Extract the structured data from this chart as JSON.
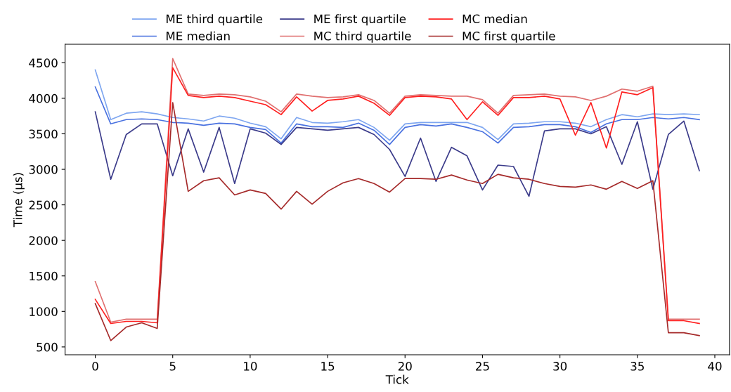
{
  "chart_data": {
    "type": "line",
    "xlabel": "Tick",
    "ylabel": "Time (µs)",
    "x": [
      0,
      1,
      2,
      3,
      4,
      5,
      6,
      7,
      8,
      9,
      10,
      11,
      12,
      13,
      14,
      15,
      16,
      17,
      18,
      19,
      20,
      21,
      22,
      23,
      24,
      25,
      26,
      27,
      28,
      29,
      30,
      31,
      32,
      33,
      34,
      35,
      36,
      37,
      38,
      39
    ],
    "xlim": [
      -1.95,
      40.95
    ],
    "xticks": [
      0,
      5,
      10,
      15,
      20,
      25,
      30,
      35,
      40
    ],
    "ylim": [
      390,
      4760
    ],
    "yticks": [
      500,
      1000,
      1500,
      2000,
      2500,
      3000,
      3500,
      4000,
      4500
    ],
    "grid": false,
    "legend": "top",
    "marker": "none",
    "line_style": "solid",
    "series": [
      {
        "name": "ME third quartile",
        "color": "#7ea6f0",
        "values": [
          4400,
          3700,
          3790,
          3810,
          3780,
          3730,
          3710,
          3680,
          3750,
          3720,
          3650,
          3600,
          3430,
          3730,
          3660,
          3650,
          3670,
          3700,
          3590,
          3410,
          3640,
          3660,
          3660,
          3660,
          3660,
          3590,
          3420,
          3640,
          3650,
          3670,
          3670,
          3650,
          3600,
          3700,
          3770,
          3740,
          3780,
          3770,
          3780,
          3770
        ]
      },
      {
        "name": "ME median",
        "color": "#4a72e0",
        "values": [
          4160,
          3640,
          3700,
          3710,
          3700,
          3660,
          3650,
          3620,
          3650,
          3640,
          3590,
          3560,
          3370,
          3640,
          3600,
          3600,
          3590,
          3650,
          3550,
          3350,
          3590,
          3630,
          3610,
          3640,
          3590,
          3530,
          3370,
          3590,
          3600,
          3630,
          3630,
          3600,
          3520,
          3640,
          3700,
          3700,
          3730,
          3710,
          3730,
          3700
        ]
      },
      {
        "name": "ME first quartile",
        "color": "#3b3b8a",
        "values": [
          3810,
          2860,
          3490,
          3640,
          3640,
          2910,
          3570,
          2960,
          3590,
          2800,
          3570,
          3510,
          3350,
          3590,
          3570,
          3550,
          3570,
          3590,
          3490,
          3280,
          2900,
          3440,
          2830,
          3310,
          3190,
          2710,
          3060,
          3040,
          2620,
          3540,
          3570,
          3570,
          3500,
          3600,
          3070,
          3670,
          2720,
          3490,
          3680,
          2980
        ]
      },
      {
        "name": "MC third quartile",
        "color": "#e07070",
        "values": [
          1420,
          850,
          890,
          890,
          890,
          4560,
          4060,
          4040,
          4060,
          4050,
          4020,
          3960,
          3810,
          4060,
          4030,
          4010,
          4020,
          4050,
          3970,
          3790,
          4030,
          4050,
          4040,
          4030,
          4030,
          3980,
          3790,
          4040,
          4050,
          4060,
          4030,
          4020,
          3970,
          4030,
          4130,
          4100,
          4170,
          890,
          890,
          890
        ]
      },
      {
        "name": "MC median",
        "color": "#ff2020",
        "values": [
          1170,
          830,
          860,
          860,
          840,
          4430,
          4040,
          4010,
          4030,
          4010,
          3960,
          3910,
          3770,
          4020,
          3820,
          3970,
          3990,
          4030,
          3930,
          3760,
          4010,
          4030,
          4020,
          3990,
          3700,
          3950,
          3760,
          4010,
          4010,
          4030,
          3990,
          3480,
          3940,
          3300,
          4090,
          4050,
          4150,
          870,
          870,
          830
        ]
      },
      {
        "name": "MC first quartile",
        "color": "#a52a2a",
        "values": [
          1110,
          590,
          780,
          840,
          760,
          3940,
          2690,
          2840,
          2880,
          2640,
          2710,
          2660,
          2440,
          2690,
          2510,
          2690,
          2810,
          2870,
          2800,
          2680,
          2870,
          2870,
          2860,
          2920,
          2850,
          2800,
          2930,
          2880,
          2860,
          2800,
          2760,
          2750,
          2780,
          2720,
          2830,
          2730,
          2840,
          700,
          700,
          660
        ]
      }
    ]
  }
}
